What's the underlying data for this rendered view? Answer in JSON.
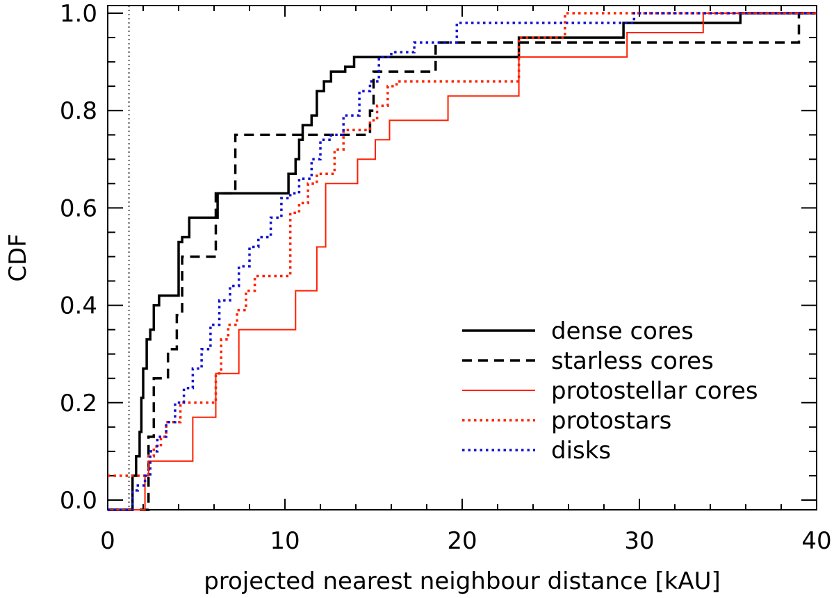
{
  "chart_data": {
    "type": "line",
    "step": true,
    "xlabel": "projected nearest neighbour distance [kAU]",
    "ylabel": "CDF",
    "xlim": [
      0,
      40
    ],
    "ylim": [
      -0.02,
      1.02
    ],
    "x_ticks": [
      0,
      10,
      20,
      30,
      40
    ],
    "x_tick_labels": [
      "0",
      "10",
      "20",
      "30",
      "40"
    ],
    "y_ticks": [
      0.0,
      0.2,
      0.4,
      0.6,
      0.8,
      1.0
    ],
    "y_tick_labels": [
      "0.0",
      "0.2",
      "0.4",
      "0.6",
      "0.8",
      "1.0"
    ],
    "reference_line": {
      "x": 1.2,
      "style": "dotted",
      "color": "#000000"
    },
    "legend_position": "lower-right",
    "series": [
      {
        "name": "dense cores",
        "color": "#000000",
        "style": "solid",
        "weight": "thick",
        "x": [
          0,
          1.0,
          1.4,
          1.6,
          1.8,
          1.9,
          2.0,
          2.2,
          2.4,
          2.6,
          2.9,
          3.2,
          3.5,
          4.0,
          4.2,
          4.6,
          5.1,
          6.2,
          10.2,
          10.6,
          10.8,
          11.0,
          11.5,
          11.8,
          12.2,
          12.6,
          13.4,
          13.9,
          23.2,
          29.1,
          35.7,
          40
        ],
        "y": [
          -0.02,
          -0.02,
          0.05,
          0.09,
          0.14,
          0.21,
          0.27,
          0.33,
          0.35,
          0.4,
          0.42,
          0.42,
          0.42,
          0.53,
          0.54,
          0.58,
          0.58,
          0.63,
          0.67,
          0.7,
          0.74,
          0.77,
          0.79,
          0.84,
          0.86,
          0.88,
          0.89,
          0.91,
          0.95,
          0.98,
          1.0,
          1.0
        ]
      },
      {
        "name": "starless cores",
        "color": "#000000",
        "style": "dashed",
        "weight": "thick",
        "x": [
          0,
          2.0,
          2.3,
          2.6,
          3.4,
          3.9,
          4.2,
          6.1,
          7.2,
          14.8,
          15.0,
          18.5,
          39.0,
          40
        ],
        "y": [
          -0.02,
          -0.02,
          0.13,
          0.25,
          0.31,
          0.38,
          0.5,
          0.63,
          0.75,
          0.8,
          0.88,
          0.94,
          1.0,
          1.0
        ],
        "initial_value": -0.02
      },
      {
        "name": "protostellar cores",
        "color": "#ff2000",
        "style": "solid",
        "weight": "thin",
        "x": [
          0,
          2.1,
          2.3,
          4.8,
          6.1,
          7.4,
          10.6,
          11.8,
          12.3,
          14.1,
          15.1,
          15.9,
          19.2,
          23.2,
          29.3,
          33.6,
          40
        ],
        "y": [
          -0.02,
          0.05,
          0.08,
          0.17,
          0.26,
          0.35,
          0.43,
          0.52,
          0.65,
          0.7,
          0.74,
          0.78,
          0.83,
          0.91,
          0.96,
          1.0,
          1.0
        ]
      },
      {
        "name": "protostars",
        "color": "#ff2000",
        "style": "dotted",
        "weight": "thick",
        "x": [
          0,
          2.0,
          2.3,
          2.6,
          3.0,
          3.3,
          4.1,
          6.1,
          6.4,
          6.8,
          7.3,
          7.8,
          8.3,
          10.3,
          10.8,
          11.3,
          11.8,
          12.8,
          13.3,
          14.8,
          15.2,
          15.8,
          16.3,
          23.2,
          25.8,
          40
        ],
        "y": [
          0.05,
          0.05,
          0.09,
          0.11,
          0.13,
          0.16,
          0.2,
          0.26,
          0.33,
          0.36,
          0.39,
          0.43,
          0.46,
          0.59,
          0.61,
          0.65,
          0.67,
          0.72,
          0.76,
          0.78,
          0.81,
          0.85,
          0.86,
          0.95,
          1.0,
          1.0
        ]
      },
      {
        "name": "disks",
        "color": "#1010d0",
        "style": "dotted",
        "weight": "thick",
        "x": [
          0,
          1.4,
          1.7,
          2.1,
          2.4,
          2.8,
          3.3,
          3.8,
          4.3,
          4.8,
          5.3,
          5.8,
          6.3,
          6.9,
          7.4,
          8.0,
          8.5,
          9.2,
          9.8,
          10.3,
          10.8,
          11.5,
          12.0,
          12.6,
          13.3,
          14.2,
          14.8,
          15.3,
          16.0,
          17.3,
          19.7,
          29.7,
          40
        ],
        "y": [
          -0.02,
          0.02,
          0.03,
          0.05,
          0.1,
          0.13,
          0.16,
          0.2,
          0.23,
          0.27,
          0.31,
          0.36,
          0.41,
          0.44,
          0.48,
          0.52,
          0.54,
          0.58,
          0.62,
          0.63,
          0.66,
          0.7,
          0.74,
          0.75,
          0.79,
          0.84,
          0.86,
          0.91,
          0.92,
          0.94,
          0.98,
          1.0,
          1.0
        ]
      }
    ]
  }
}
